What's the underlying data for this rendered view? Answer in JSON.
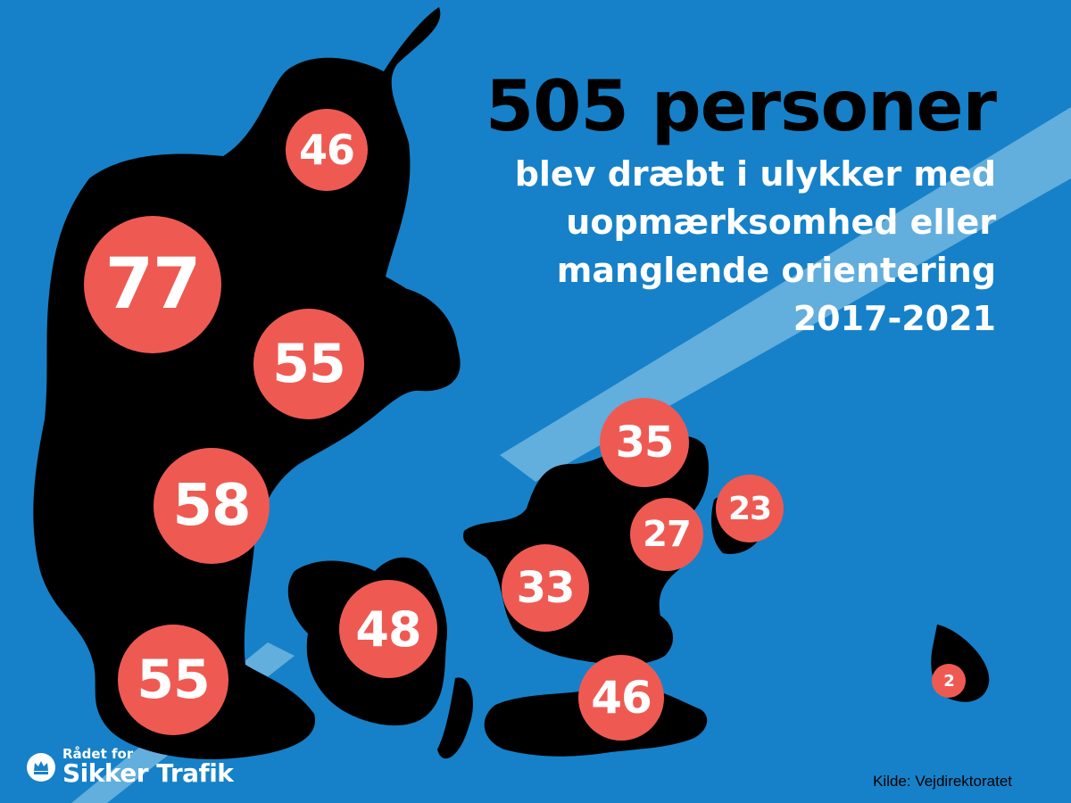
{
  "headline": {
    "title": "505 personer",
    "line1": "blev dræbt i ulykker med",
    "line2": "uopmærksomhed eller",
    "line3": "manglende orientering",
    "years": "2017-2021"
  },
  "regions": [
    {
      "id": "nordjylland",
      "value": "46"
    },
    {
      "id": "vestjylland-nord",
      "value": "77"
    },
    {
      "id": "østjylland-nord",
      "value": "55"
    },
    {
      "id": "midtjylland",
      "value": "58"
    },
    {
      "id": "sønderjylland",
      "value": "55"
    },
    {
      "id": "fyn",
      "value": "48"
    },
    {
      "id": "nordsjælland",
      "value": "35"
    },
    {
      "id": "københavn",
      "value": "27"
    },
    {
      "id": "amager",
      "value": "23"
    },
    {
      "id": "vest-sjælland",
      "value": "33"
    },
    {
      "id": "lolland-falster",
      "value": "46"
    },
    {
      "id": "bornholm",
      "value": "2"
    }
  ],
  "logo": {
    "line1": "Rådet for",
    "line2": "Sikker Trafik"
  },
  "source": "Kilde: Vejdirektoratet",
  "colors": {
    "background": "#1681c8",
    "land": "#000000",
    "bubble": "#ee5a52",
    "text_white": "#ffffff",
    "road_stripe": "#62aedd"
  }
}
